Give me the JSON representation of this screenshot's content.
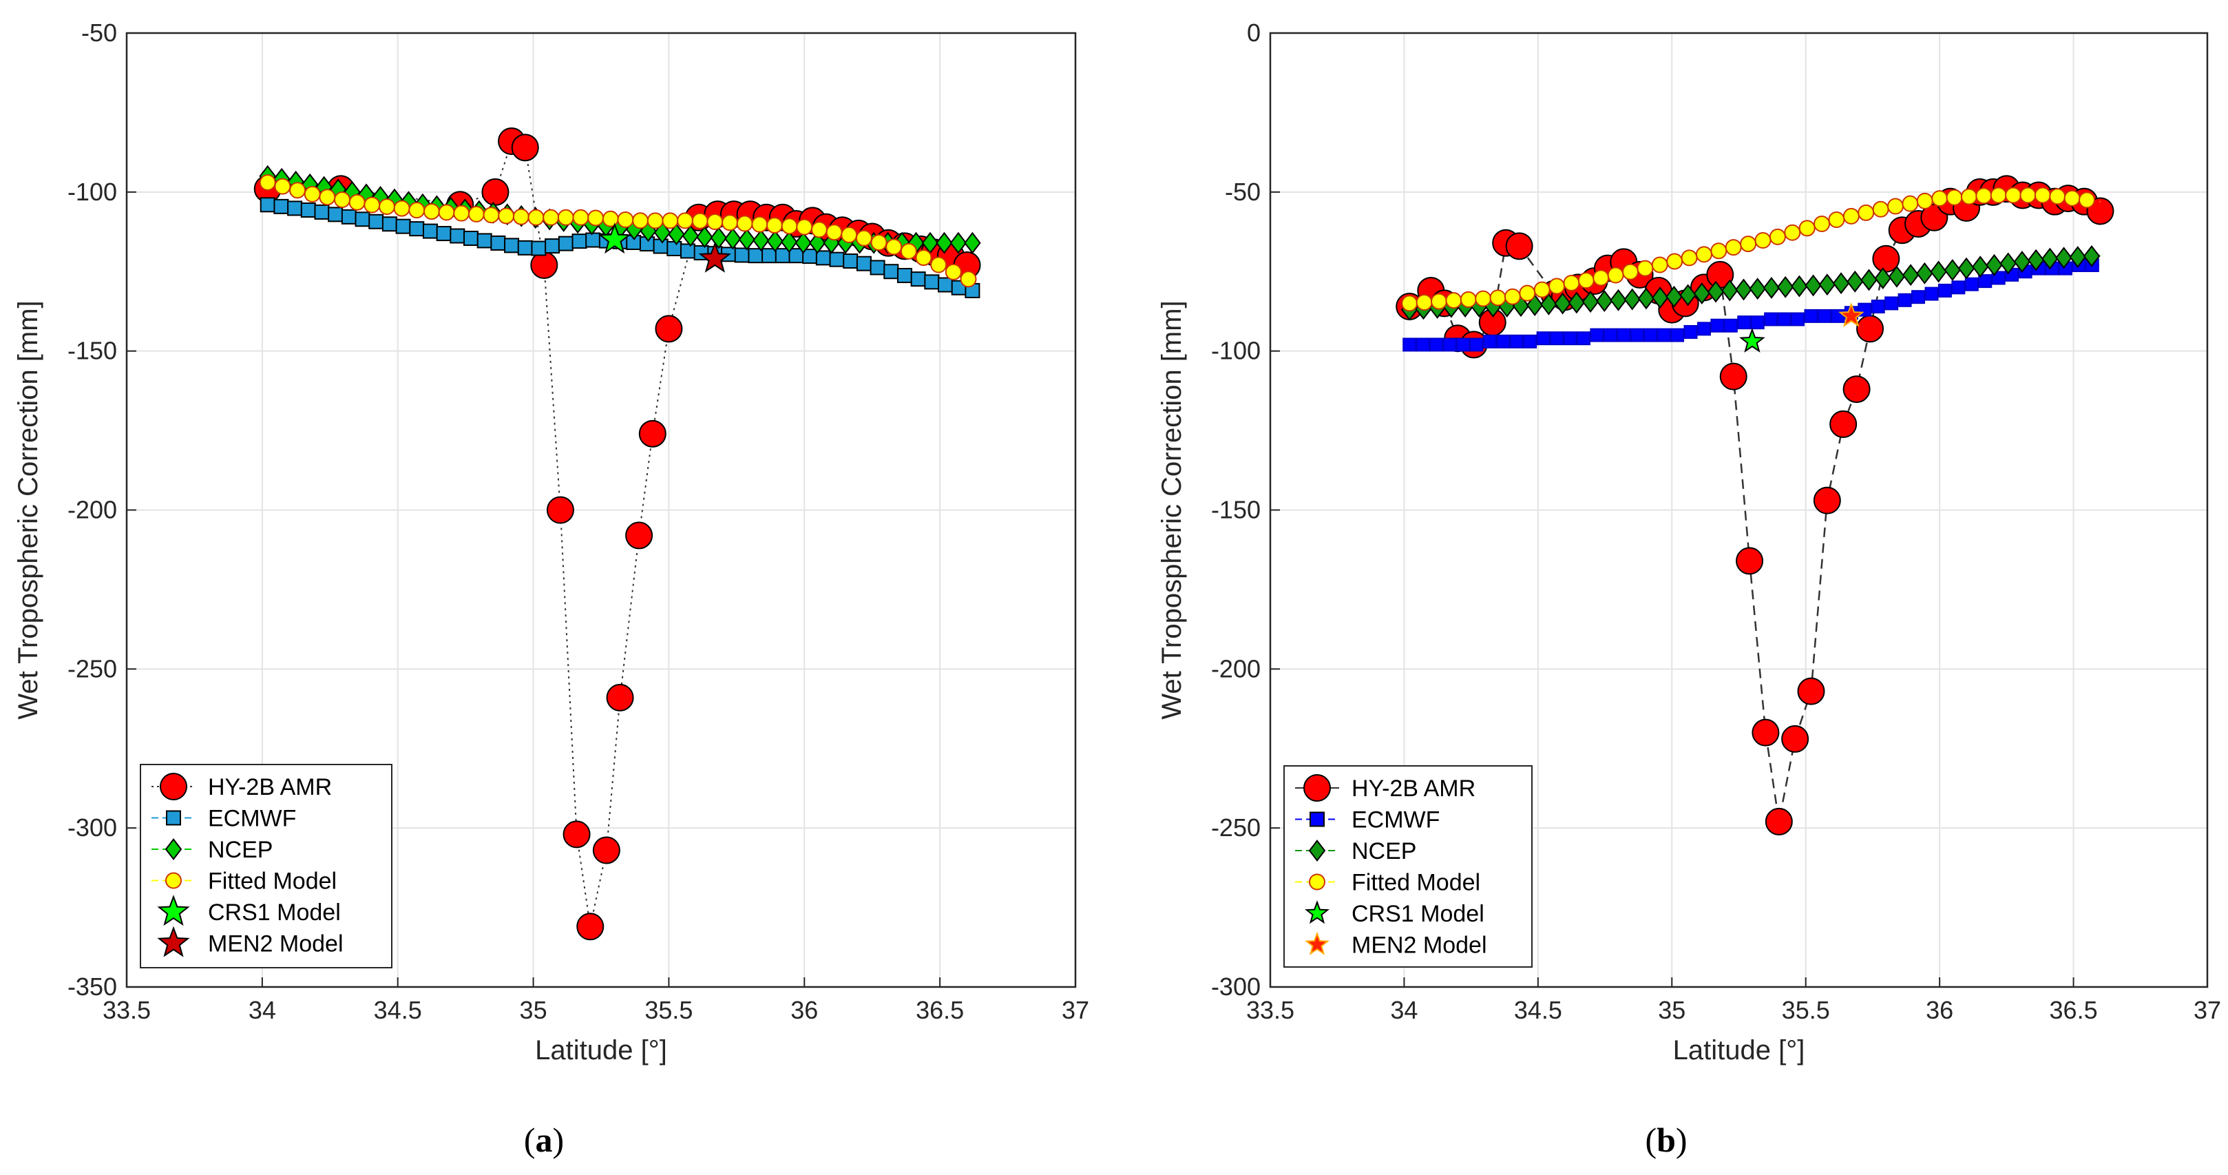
{
  "chart_data": [
    {
      "panel": "(a)",
      "type": "line",
      "xlabel": "Latitude [°]",
      "ylabel": "Wet Tropospheric Correction [mm]",
      "xlim": [
        33.5,
        37
      ],
      "ylim": [
        -350,
        -50
      ],
      "xticks": [
        "33.5",
        "34",
        "34.5",
        "35",
        "35.5",
        "36",
        "36.5",
        "37"
      ],
      "yticks": [
        "-50",
        "-100",
        "-150",
        "-200",
        "-250",
        "-300",
        "-350"
      ],
      "grid": true,
      "legend_position": "bottom-left",
      "series": [
        {
          "name": "HY-2B AMR",
          "marker": "circle",
          "line": "dotted",
          "color": "#ff0000",
          "x": [
            34.02,
            34.29,
            34.73,
            34.86,
            34.92,
            34.97,
            35.04,
            35.1,
            35.16,
            35.21,
            35.27,
            35.32,
            35.39,
            35.44,
            35.5,
            35.61,
            35.68,
            35.74,
            35.8,
            35.86,
            35.92,
            35.97,
            36.03,
            36.08,
            36.14,
            36.2,
            36.25,
            36.31,
            36.37,
            36.43,
            36.48,
            36.54,
            36.6
          ],
          "y": [
            -99,
            -99,
            -104,
            -100,
            -84,
            -86,
            -123,
            -200,
            -302,
            -331,
            -307,
            -259,
            -208,
            -176,
            -143,
            -108,
            -107,
            -107,
            -107,
            -108,
            -108,
            -110,
            -109,
            -111,
            -112,
            -113,
            -114,
            -116,
            -117,
            -118,
            -119,
            -120,
            -123
          ]
        },
        {
          "name": "ECMWF",
          "marker": "square",
          "line": "dashed",
          "color": "#1f9ad6",
          "x": [
            34.02,
            34.2,
            34.4,
            34.6,
            34.8,
            35.0,
            35.2,
            35.4,
            35.6,
            35.8,
            36.0,
            36.2,
            36.4,
            36.62
          ],
          "y": [
            -104,
            -106,
            -109,
            -112,
            -115,
            -118,
            -115,
            -116,
            -119,
            -120,
            -120,
            -122,
            -127,
            -131
          ]
        },
        {
          "name": "NCEP",
          "marker": "diamond",
          "line": "dashed",
          "color": "#00cc00",
          "x": [
            34.02,
            34.2,
            34.4,
            34.6,
            34.8,
            35.0,
            35.2,
            35.4,
            35.6,
            35.8,
            36.0,
            36.2,
            36.4,
            36.62
          ],
          "y": [
            -95,
            -98,
            -101,
            -104,
            -106,
            -108,
            -110,
            -112,
            -114,
            -115,
            -116,
            -116,
            -116,
            -116
          ]
        },
        {
          "name": "Fitted Model",
          "marker": "circle",
          "line": "dashed",
          "color": "#ffff00",
          "x": [
            34.02,
            34.2,
            34.4,
            34.6,
            34.8,
            35.0,
            35.2,
            35.4,
            35.6,
            35.8,
            36.0,
            36.2,
            36.4,
            36.62
          ],
          "y": [
            -97,
            -101,
            -104,
            -106,
            -107,
            -108,
            -108,
            -109,
            -109,
            -110,
            -111,
            -114,
            -119,
            -128
          ]
        },
        {
          "name": "CRS1 Model",
          "marker": "star",
          "line": "none",
          "color": "#00ff00",
          "x": [
            35.3
          ],
          "y": [
            -115
          ]
        },
        {
          "name": "MEN2 Model",
          "marker": "star",
          "line": "none",
          "color": "#cc0000",
          "x": [
            35.67
          ],
          "y": [
            -121
          ]
        }
      ]
    },
    {
      "panel": "(b)",
      "type": "line",
      "xlabel": "Latitude [°]",
      "ylabel": "Wet Tropospheric Correction [mm]",
      "xlim": [
        33.5,
        37
      ],
      "ylim": [
        -300,
        0
      ],
      "xticks": [
        "33.5",
        "34",
        "34.5",
        "35",
        "35.5",
        "36",
        "36.5",
        "37"
      ],
      "yticks": [
        "0",
        "-50",
        "-100",
        "-150",
        "-200",
        "-250",
        "-300"
      ],
      "grid": true,
      "legend_position": "bottom-left",
      "series": [
        {
          "name": "HY-2B AMR",
          "marker": "circle",
          "line": "dashed",
          "color": "#ff0000",
          "x": [
            34.02,
            34.1,
            34.15,
            34.2,
            34.26,
            34.33,
            34.38,
            34.43,
            34.56,
            34.6,
            34.65,
            34.71,
            34.76,
            34.82,
            34.88,
            34.95,
            35.0,
            35.05,
            35.12,
            35.18,
            35.23,
            35.29,
            35.35,
            35.4,
            35.46,
            35.52,
            35.58,
            35.64,
            35.69,
            35.74,
            35.8,
            35.86,
            35.92,
            35.98,
            36.04,
            36.1,
            36.15,
            36.2,
            36.25,
            36.31,
            36.37,
            36.43,
            36.48,
            36.54,
            36.6
          ],
          "y": [
            -86,
            -81,
            -85,
            -96,
            -98,
            -91,
            -66,
            -67,
            -82,
            -83,
            -80,
            -78,
            -74,
            -72,
            -76,
            -81,
            -87,
            -85,
            -80,
            -76,
            -108,
            -166,
            -220,
            -248,
            -222,
            -207,
            -147,
            -123,
            -112,
            -93,
            -71,
            -62,
            -60,
            -58,
            -53,
            -55,
            -50,
            -50,
            -49,
            -51,
            -51,
            -53,
            -52,
            -53,
            -56
          ]
        },
        {
          "name": "ECMWF",
          "marker": "square",
          "line": "dashed",
          "color": "#0000ff",
          "x": [
            34.02,
            34.2,
            34.4,
            34.6,
            34.8,
            35.0,
            35.2,
            35.4,
            35.6,
            35.8,
            36.0,
            36.2,
            36.4,
            36.6
          ],
          "y": [
            -98,
            -98,
            -97,
            -96,
            -95,
            -95,
            -92,
            -90,
            -89,
            -85,
            -81,
            -77,
            -74,
            -73
          ]
        },
        {
          "name": "NCEP",
          "marker": "diamond",
          "line": "dashed",
          "color": "#119911",
          "x": [
            34.02,
            34.2,
            34.4,
            34.6,
            34.8,
            35.0,
            35.2,
            35.4,
            35.6,
            35.8,
            36.0,
            36.2,
            36.4,
            36.6
          ],
          "y": [
            -87,
            -86,
            -86,
            -85,
            -84,
            -83,
            -81,
            -80,
            -79,
            -77,
            -75,
            -73,
            -71,
            -70
          ]
        },
        {
          "name": "Fitted Model",
          "marker": "circle",
          "line": "dashed",
          "color": "#ffff00",
          "x": [
            34.02,
            34.2,
            34.4,
            34.6,
            34.8,
            35.0,
            35.2,
            35.4,
            35.6,
            35.8,
            36.0,
            36.2,
            36.4,
            36.6
          ],
          "y": [
            -85,
            -84,
            -83,
            -79,
            -76,
            -72,
            -68,
            -64,
            -59,
            -55,
            -52,
            -51,
            -51,
            -53
          ]
        },
        {
          "name": "CRS1 Model",
          "marker": "star",
          "line": "none",
          "color": "#00ff00",
          "x": [
            35.3
          ],
          "y": [
            -97
          ]
        },
        {
          "name": "MEN2 Model",
          "marker": "star",
          "line": "none",
          "color": "#ff2200",
          "x": [
            35.67
          ],
          "y": [
            -89
          ]
        }
      ]
    }
  ]
}
